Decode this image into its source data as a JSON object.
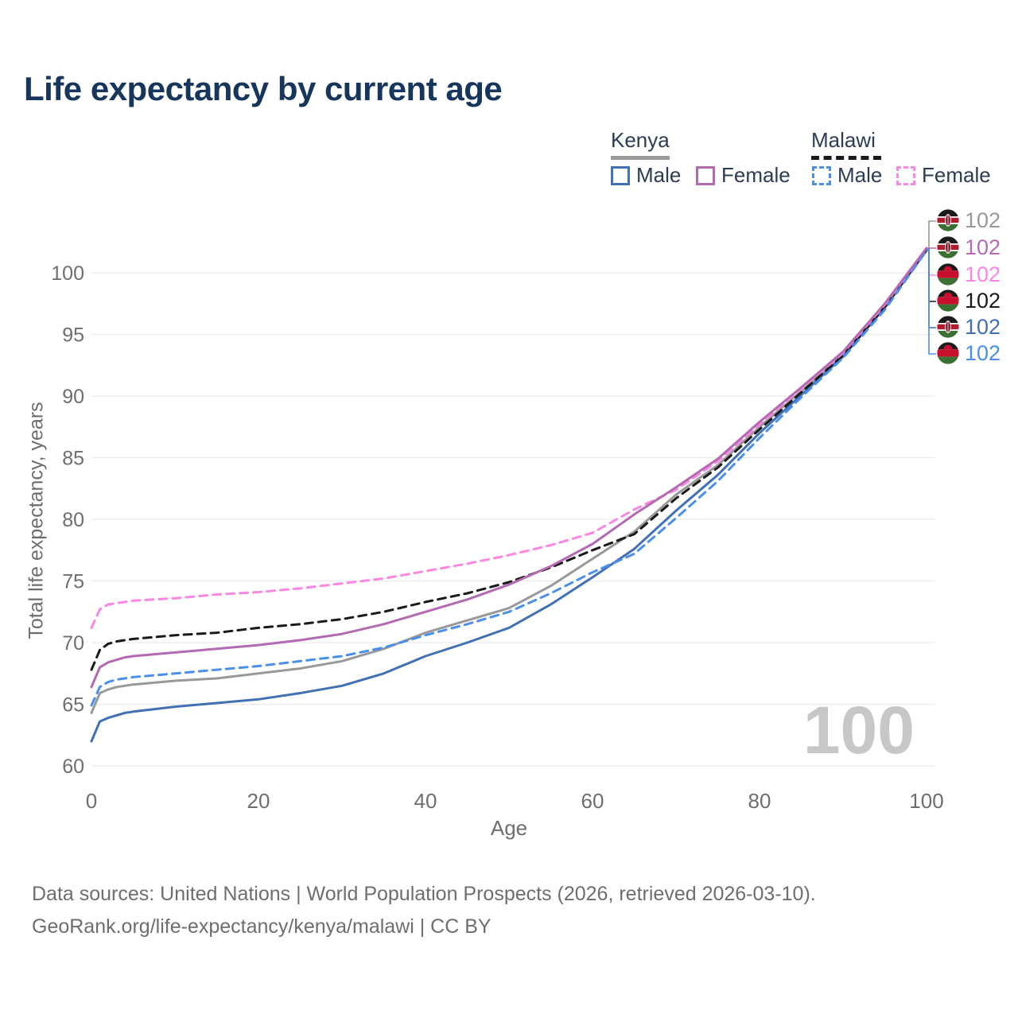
{
  "title": "Life expectancy by current age",
  "legend": {
    "groups": [
      {
        "country": "Kenya",
        "line_style": "solid",
        "underline_color": "#9a9a9a",
        "items": [
          {
            "label": "Male",
            "color": "#4170b4",
            "dashed": false
          },
          {
            "label": "Female",
            "color": "#b36ab3",
            "dashed": false
          }
        ]
      },
      {
        "country": "Malawi",
        "line_style": "dashed",
        "underline_color": "#1a1a1a",
        "items": [
          {
            "label": "Male",
            "color": "#4a8fe8",
            "dashed": true
          },
          {
            "label": "Female",
            "color": "#fb87e3",
            "dashed": true
          }
        ]
      }
    ]
  },
  "chart_data": {
    "type": "line",
    "title": "Life expectancy by current age",
    "xlabel": "Age",
    "ylabel": "Total life expectancy, years",
    "watermark": "100",
    "xlim": [
      0,
      100
    ],
    "ylim": [
      60,
      102
    ],
    "x_ticks": [
      0,
      20,
      40,
      60,
      80,
      100
    ],
    "y_ticks": [
      60,
      65,
      70,
      75,
      80,
      85,
      90,
      95,
      100
    ],
    "grid": "horizontal",
    "legend_position": "top-right",
    "x": [
      0,
      1,
      2,
      3,
      4,
      5,
      10,
      15,
      20,
      25,
      30,
      35,
      40,
      45,
      50,
      55,
      60,
      65,
      70,
      75,
      80,
      85,
      90,
      95,
      100
    ],
    "series": [
      {
        "name": "Kenya All",
        "country": "Kenya",
        "sex": "all",
        "color": "#999999",
        "dashed": false,
        "end_label": "102",
        "values": [
          64.3,
          65.9,
          66.2,
          66.4,
          66.5,
          66.6,
          66.9,
          67.1,
          67.5,
          67.9,
          68.5,
          69.5,
          70.8,
          71.8,
          72.8,
          74.6,
          76.8,
          79.0,
          82.0,
          84.4,
          87.5,
          90.4,
          93.4,
          97.3,
          101.9
        ]
      },
      {
        "name": "Kenya Male",
        "country": "Kenya",
        "sex": "male",
        "color": "#4170b4",
        "dashed": false,
        "end_label": "102",
        "values": [
          62.0,
          63.6,
          63.9,
          64.1,
          64.3,
          64.4,
          64.8,
          65.1,
          65.4,
          65.9,
          66.5,
          67.5,
          68.9,
          70.0,
          71.2,
          73.1,
          75.3,
          77.6,
          80.7,
          83.6,
          87.0,
          90.1,
          93.2,
          97.2,
          101.8
        ]
      },
      {
        "name": "Malawi All",
        "country": "Malawi",
        "sex": "all",
        "color": "#1a1a1a",
        "dashed": true,
        "end_label": "102",
        "values": [
          67.8,
          69.4,
          69.9,
          70.1,
          70.2,
          70.3,
          70.6,
          70.8,
          71.2,
          71.5,
          71.9,
          72.5,
          73.3,
          74.0,
          74.9,
          76.1,
          77.5,
          78.8,
          81.7,
          84.2,
          87.3,
          90.3,
          93.3,
          97.2,
          101.9
        ]
      },
      {
        "name": "Malawi Male",
        "country": "Malawi",
        "sex": "male",
        "color": "#4a8fe8",
        "dashed": true,
        "end_label": "102",
        "values": [
          64.9,
          66.4,
          66.8,
          67.0,
          67.1,
          67.2,
          67.5,
          67.8,
          68.1,
          68.5,
          68.9,
          69.6,
          70.6,
          71.5,
          72.5,
          74.0,
          75.7,
          77.2,
          80.1,
          83.1,
          86.6,
          89.9,
          93.1,
          97.0,
          101.8
        ]
      },
      {
        "name": "Malawi Female",
        "country": "Malawi",
        "sex": "female",
        "color": "#fb87e3",
        "dashed": true,
        "end_label": "102",
        "values": [
          71.2,
          72.7,
          73.1,
          73.2,
          73.3,
          73.4,
          73.6,
          73.9,
          74.1,
          74.4,
          74.8,
          75.2,
          75.8,
          76.4,
          77.1,
          77.9,
          78.9,
          80.8,
          82.4,
          84.7,
          87.7,
          90.6,
          93.5,
          97.4,
          102.0
        ]
      },
      {
        "name": "Kenya Female",
        "country": "Kenya",
        "sex": "female",
        "color": "#b36ab3",
        "dashed": false,
        "end_label": "102",
        "values": [
          66.4,
          68.0,
          68.4,
          68.6,
          68.8,
          68.9,
          69.2,
          69.5,
          69.8,
          70.2,
          70.7,
          71.5,
          72.5,
          73.5,
          74.7,
          76.2,
          78.0,
          80.4,
          82.6,
          84.9,
          87.9,
          90.7,
          93.6,
          97.5,
          102.0
        ]
      }
    ]
  },
  "end_labels": [
    {
      "value": "102",
      "color": "#999999",
      "flag": "kenya"
    },
    {
      "value": "102",
      "color": "#b36ab3",
      "flag": "kenya"
    },
    {
      "value": "102",
      "color": "#fb87e3",
      "flag": "malawi"
    },
    {
      "value": "102",
      "color": "#1a1a1a",
      "flag": "malawi"
    },
    {
      "value": "102",
      "color": "#4170b4",
      "flag": "kenya"
    },
    {
      "value": "102",
      "color": "#4a8fe8",
      "flag": "malawi"
    }
  ],
  "footer": {
    "line1": "Data sources: United Nations | World Population Prospects (2026, retrieved 2026-03-10).",
    "line2": "GeoRank.org/life-expectancy/kenya/malawi | CC BY"
  },
  "colors": {
    "title": "#17365d",
    "axis_text": "#6e6e6e",
    "grid": "#ebebeb",
    "watermark": "#c7c7c7",
    "legend_text": "#2d3c55"
  }
}
